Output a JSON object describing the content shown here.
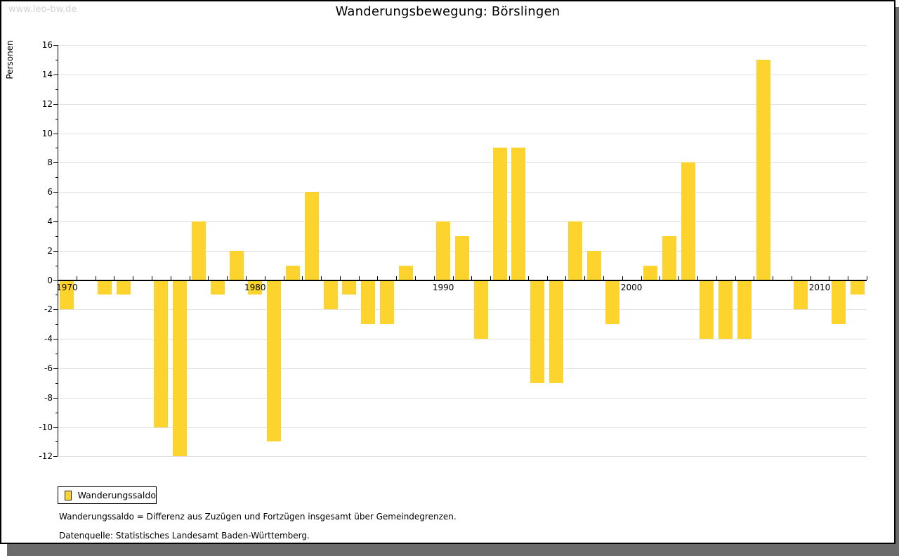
{
  "watermark": "www.leo-bw.de",
  "title": "Wanderungsbewegung: Börslingen",
  "legend": {
    "label": "Wanderungssaldo",
    "swatch_icon": "yellow-square-icon"
  },
  "footnotes": [
    "Wanderungssaldo = Differenz aus Zuzügen und Fortzügen insgesamt über Gemeindegrenzen.",
    "Datenquelle: Statistisches Landesamt Baden-Württemberg."
  ],
  "colors": {
    "bar": "#fdd32d",
    "gridline": "#e0e0e0",
    "axis": "#000000",
    "watermark": "#d2d2d2",
    "shadow": "#6b6b6b"
  },
  "chart_data": {
    "type": "bar",
    "title": "Wanderungsbewegung: Börslingen",
    "ylabel": "Personen",
    "xlabel": "",
    "ylim": [
      -12,
      16
    ],
    "grid": "horizontal, at even values",
    "legend_position": "bottom-left, boxed",
    "series_name": "Wanderungssaldo",
    "y_tick_labels": [
      "-12",
      "-10",
      "-8",
      "-6",
      "-4",
      "-2",
      "0",
      "2",
      "4",
      "6",
      "8",
      "10",
      "12",
      "14",
      "16"
    ],
    "x_tick_labels": [
      "1970",
      "1980",
      "1990",
      "2000",
      "2010"
    ],
    "categories": [
      1970,
      1971,
      1972,
      1973,
      1974,
      1975,
      1976,
      1977,
      1978,
      1979,
      1980,
      1981,
      1982,
      1983,
      1984,
      1985,
      1986,
      1987,
      1988,
      1989,
      1990,
      1991,
      1992,
      1993,
      1994,
      1995,
      1996,
      1997,
      1998,
      1999,
      2000,
      2001,
      2002,
      2003,
      2004,
      2005,
      2006,
      2007,
      2008,
      2009,
      2010,
      2011,
      2012
    ],
    "values": [
      -2,
      0,
      -1,
      -1,
      0,
      -10,
      -12,
      4,
      -1,
      2,
      -1,
      -11,
      1,
      6,
      -2,
      -1,
      -3,
      -3,
      1,
      0,
      4,
      3,
      -4,
      9,
      9,
      -7,
      -7,
      4,
      2,
      -3,
      0,
      1,
      3,
      8,
      -4,
      -4,
      -4,
      15,
      0,
      -2,
      0,
      -3,
      -1
    ]
  }
}
